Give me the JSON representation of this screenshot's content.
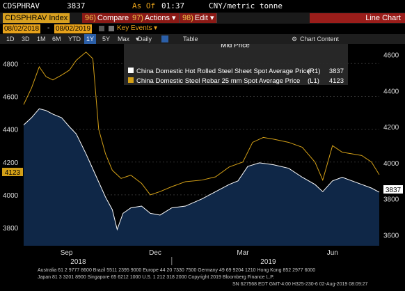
{
  "header": {
    "security": "CDSPHRAV",
    "last_value": "3837",
    "as_of_label": "As Of",
    "time": "01:37",
    "units": "CNY/metric tonne"
  },
  "toolbar": {
    "ticker": "CDSPHRAV Index",
    "compare_num": "96)",
    "compare_label": "Compare",
    "actions_num": "97)",
    "actions_label": "Actions",
    "edit_num": "98)",
    "edit_label": "Edit",
    "view_label": "Line Chart"
  },
  "range": {
    "start_date": "08/02/2018",
    "end_date": "08/02/2019",
    "key_events_label": "Key Events"
  },
  "tabs": {
    "periods": [
      "1D",
      "3D",
      "1M",
      "6M",
      "YTD",
      "1Y",
      "5Y",
      "Max"
    ],
    "active_period": "1Y",
    "frequency": "Daily",
    "table_label": "Table",
    "chart_content_label": "Chart Content"
  },
  "legend": {
    "title": "Mid Price",
    "entries": [
      {
        "name": "China Domestic Hot Rolled Steel Sheet Spot Average Price",
        "axis": "(R1)",
        "value": "3837",
        "color": "#ffffff"
      },
      {
        "name": "China Domestic Steel Rebar 25 mm Spot Average Price",
        "axis": "(L1)",
        "value": "4123",
        "color": "#d4a017"
      }
    ]
  },
  "chart_data": {
    "type": "line",
    "x_range": [
      "2018-08-02",
      "2019-08-02"
    ],
    "x_ticks": [
      "Sep",
      "Dec",
      "Mar",
      "Jun"
    ],
    "x_year_labels": [
      "2018",
      "2019"
    ],
    "left_axis": {
      "ticks": [
        3800,
        4000,
        4200,
        4400,
        4600,
        4800
      ],
      "range": [
        3690,
        4920
      ],
      "last_label": "4123"
    },
    "right_axis": {
      "ticks": [
        3600,
        3800,
        4000,
        4200,
        4400,
        4600
      ],
      "range": [
        3540,
        4660
      ],
      "last_label": "3837"
    },
    "series": [
      {
        "name": "China Domestic Hot Rolled Steel Sheet Spot Average Price",
        "axis": "right",
        "color": "#ffffff",
        "fill": "#0f2747",
        "points": [
          [
            "2018-08-02",
            4210
          ],
          [
            "2018-08-10",
            4250
          ],
          [
            "2018-08-18",
            4300
          ],
          [
            "2018-08-25",
            4290
          ],
          [
            "2018-09-01",
            4270
          ],
          [
            "2018-09-10",
            4250
          ],
          [
            "2018-09-18",
            4200
          ],
          [
            "2018-09-25",
            4160
          ],
          [
            "2018-10-05",
            4050
          ],
          [
            "2018-10-15",
            3930
          ],
          [
            "2018-10-25",
            3810
          ],
          [
            "2018-11-01",
            3740
          ],
          [
            "2018-11-06",
            3630
          ],
          [
            "2018-11-12",
            3720
          ],
          [
            "2018-11-20",
            3750
          ],
          [
            "2018-12-01",
            3760
          ],
          [
            "2018-12-10",
            3720
          ],
          [
            "2018-12-20",
            3710
          ],
          [
            "2019-01-01",
            3750
          ],
          [
            "2019-01-15",
            3760
          ],
          [
            "2019-02-01",
            3800
          ],
          [
            "2019-02-15",
            3840
          ],
          [
            "2019-03-01",
            3880
          ],
          [
            "2019-03-10",
            3900
          ],
          [
            "2019-03-20",
            3980
          ],
          [
            "2019-04-01",
            4000
          ],
          [
            "2019-04-15",
            3990
          ],
          [
            "2019-05-01",
            3970
          ],
          [
            "2019-05-15",
            3920
          ],
          [
            "2019-05-28",
            3880
          ],
          [
            "2019-06-05",
            3840
          ],
          [
            "2019-06-15",
            3900
          ],
          [
            "2019-06-25",
            3920
          ],
          [
            "2019-07-05",
            3900
          ],
          [
            "2019-07-15",
            3880
          ],
          [
            "2019-07-25",
            3860
          ],
          [
            "2019-08-02",
            3837
          ]
        ]
      },
      {
        "name": "China Domestic Steel Rebar 25 mm Spot Average Price",
        "axis": "left",
        "color": "#d4a017",
        "points": [
          [
            "2018-08-02",
            4550
          ],
          [
            "2018-08-10",
            4650
          ],
          [
            "2018-08-18",
            4780
          ],
          [
            "2018-08-25",
            4720
          ],
          [
            "2018-09-01",
            4700
          ],
          [
            "2018-09-10",
            4730
          ],
          [
            "2018-09-18",
            4760
          ],
          [
            "2018-09-25",
            4820
          ],
          [
            "2018-10-05",
            4870
          ],
          [
            "2018-10-12",
            4830
          ],
          [
            "2018-10-18",
            4400
          ],
          [
            "2018-10-25",
            4250
          ],
          [
            "2018-11-01",
            4150
          ],
          [
            "2018-11-10",
            4100
          ],
          [
            "2018-11-20",
            4120
          ],
          [
            "2018-12-01",
            4070
          ],
          [
            "2018-12-10",
            4000
          ],
          [
            "2018-12-20",
            4020
          ],
          [
            "2019-01-01",
            4050
          ],
          [
            "2019-01-15",
            4080
          ],
          [
            "2019-02-01",
            4090
          ],
          [
            "2019-02-15",
            4110
          ],
          [
            "2019-03-01",
            4170
          ],
          [
            "2019-03-15",
            4200
          ],
          [
            "2019-03-25",
            4320
          ],
          [
            "2019-04-05",
            4350
          ],
          [
            "2019-04-15",
            4340
          ],
          [
            "2019-05-01",
            4320
          ],
          [
            "2019-05-15",
            4290
          ],
          [
            "2019-05-28",
            4200
          ],
          [
            "2019-06-05",
            4090
          ],
          [
            "2019-06-15",
            4300
          ],
          [
            "2019-06-25",
            4260
          ],
          [
            "2019-07-05",
            4250
          ],
          [
            "2019-07-15",
            4240
          ],
          [
            "2019-07-25",
            4200
          ],
          [
            "2019-08-02",
            4123
          ]
        ]
      }
    ],
    "grid": true
  },
  "footer": {
    "line1": "Australia 61 2 9777 8600 Brazil 5511 2395 9000 Europe 44 20 7330 7500 Germany 49 69 9204 1210 Hong Kong 852 2977 6000",
    "line2": "Japan 81 3 3201 8900          Singapore 65 6212 1000          U.S. 1 212 318 2000          Copyright 2019 Bloomberg Finance L.P.",
    "line3": "SN 627568 EDT  GMT-4:00 H325-230-6 02-Aug-2019 08:09:27"
  }
}
